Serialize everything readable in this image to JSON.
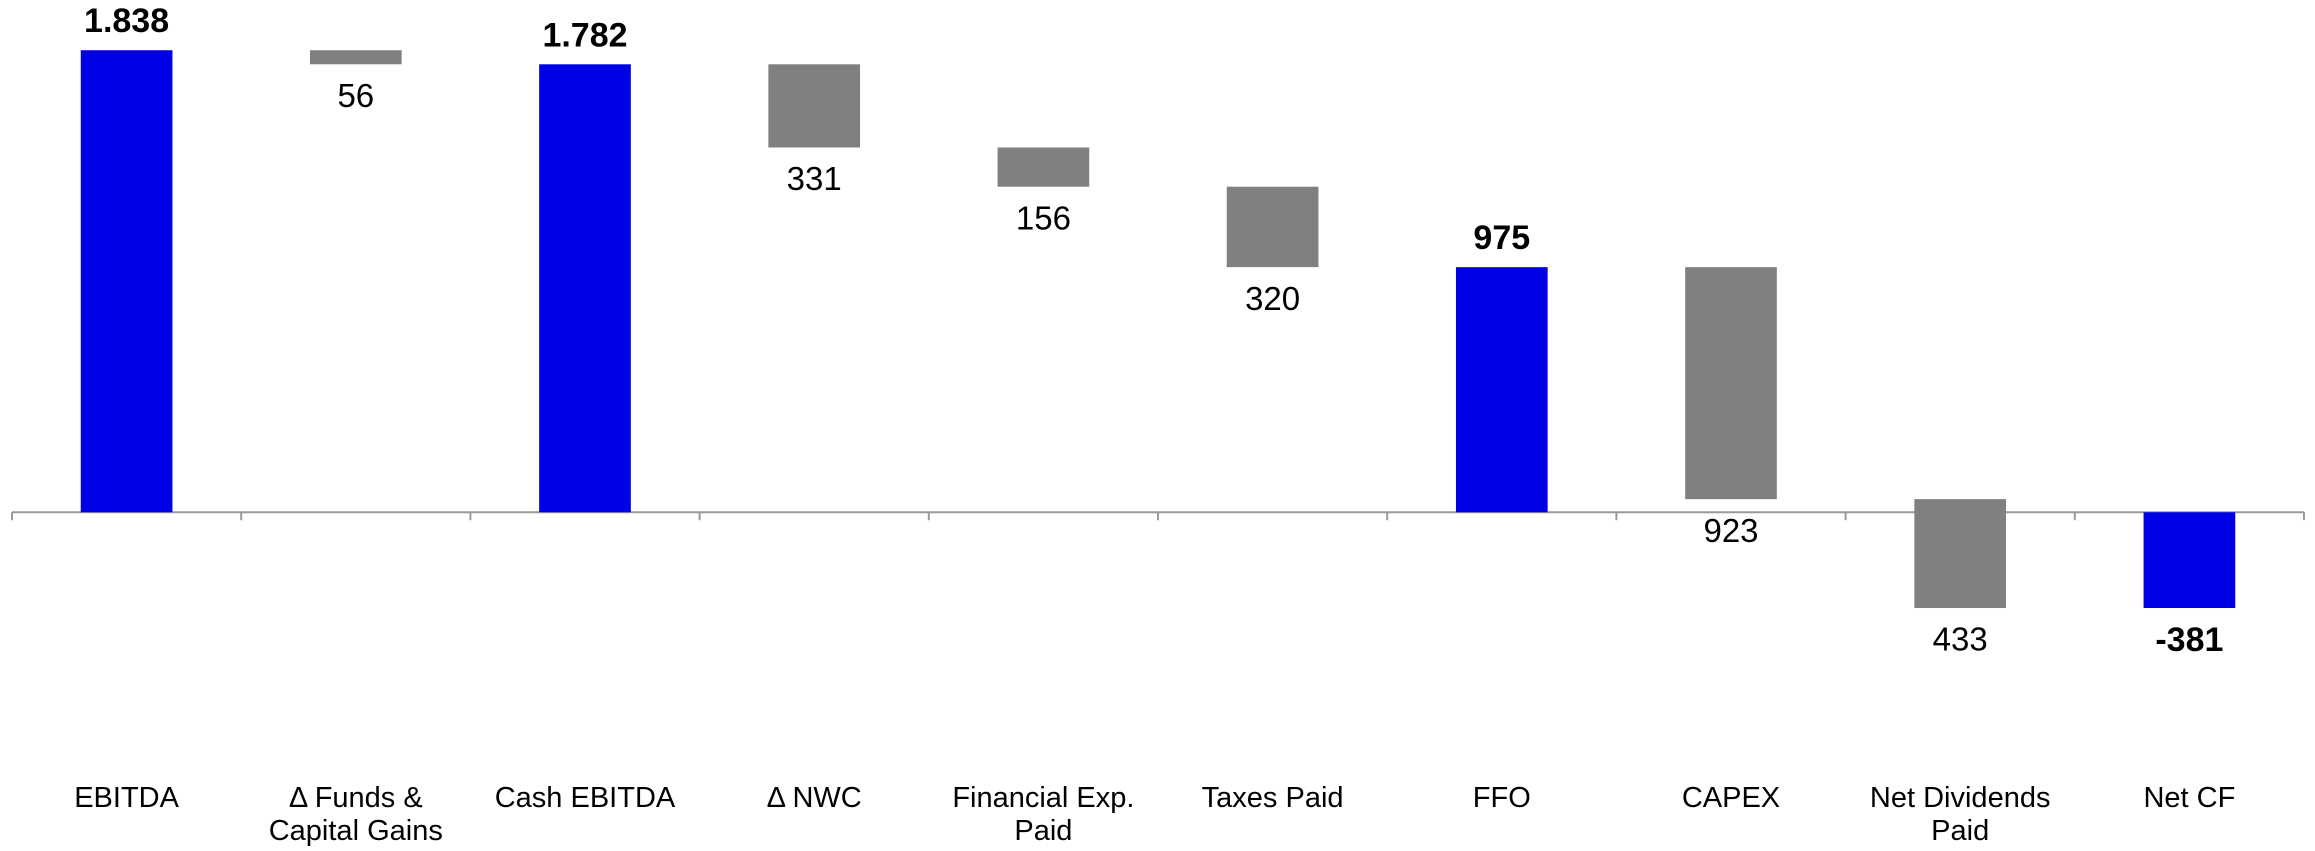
{
  "chart_data": {
    "type": "waterfall",
    "categories": [
      "EBITDA",
      "Δ Funds &\nCapital Gains",
      "Cash EBITDA",
      "Δ NWC",
      "Financial Exp.\nPaid",
      "Taxes Paid",
      "FFO",
      "CAPEX",
      "Net Dividends\nPaid",
      "Net CF"
    ],
    "measures": [
      "total",
      "decrease",
      "total",
      "decrease",
      "decrease",
      "decrease",
      "total",
      "decrease",
      "decrease",
      "total"
    ],
    "values": [
      1838,
      56,
      1782,
      331,
      156,
      320,
      975,
      923,
      433,
      -381
    ],
    "value_labels": [
      "1.838",
      "56",
      "1.782",
      "331",
      "156",
      "320",
      "975",
      "923",
      "433",
      "-381"
    ],
    "colors": {
      "total": "#0000e6",
      "decrease": "#808080"
    },
    "ylim": [
      -1000,
      2000
    ]
  }
}
